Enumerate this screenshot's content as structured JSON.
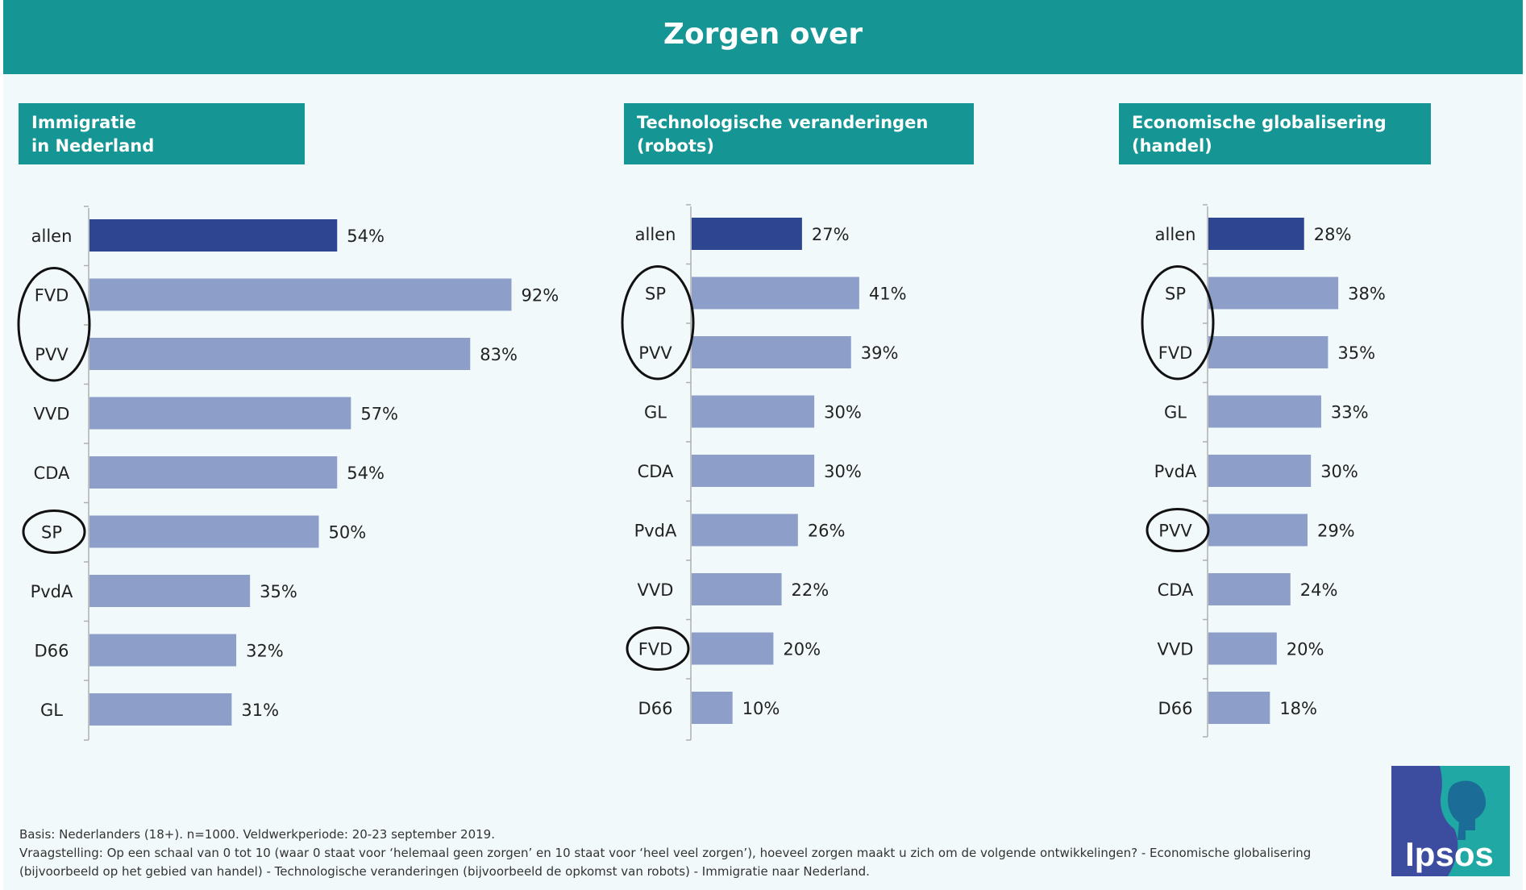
{
  "title": "Zorgen over",
  "colors": {
    "header": "#159593",
    "highlight_bar": "#2e4592",
    "bar": "#8d9ec9",
    "panel_bg": "#f2f9fa",
    "logo_bg": "#3c4da0",
    "logo_accent": "#1fa8a4"
  },
  "chart_data": [
    {
      "type": "bar",
      "orientation": "horizontal",
      "title": "Immigratie\nin Nederland",
      "categories": [
        "allen",
        "FVD",
        "PVV",
        "VVD",
        "CDA",
        "SP",
        "PvdA",
        "D66",
        "GL"
      ],
      "values": [
        54,
        92,
        83,
        57,
        54,
        50,
        35,
        32,
        31
      ],
      "labels": [
        "54%",
        "92%",
        "83%",
        "57%",
        "54%",
        "50%",
        "35%",
        "32%",
        "31%"
      ],
      "highlighted": [
        "allen"
      ],
      "circled_groups": [
        [
          "FVD",
          "PVV"
        ],
        [
          "SP"
        ]
      ],
      "unit": "%",
      "xlim": [
        0,
        100
      ],
      "grid": false
    },
    {
      "type": "bar",
      "orientation": "horizontal",
      "title": "Technologische veranderingen\n(robots)",
      "categories": [
        "allen",
        "SP",
        "PVV",
        "GL",
        "CDA",
        "PvdA",
        "VVD",
        "FVD",
        "D66"
      ],
      "values": [
        27,
        41,
        39,
        30,
        30,
        26,
        22,
        20,
        10
      ],
      "labels": [
        "27%",
        "41%",
        "39%",
        "30%",
        "30%",
        "26%",
        "22%",
        "20%",
        "10%"
      ],
      "highlighted": [
        "allen"
      ],
      "circled_groups": [
        [
          "SP",
          "PVV"
        ],
        [
          "FVD"
        ]
      ],
      "unit": "%",
      "xlim": [
        0,
        100
      ],
      "grid": false
    },
    {
      "type": "bar",
      "orientation": "horizontal",
      "title": "Economische globalisering\n (handel)",
      "categories": [
        "allen",
        "SP",
        "FVD",
        "GL",
        "PvdA",
        "PVV",
        "CDA",
        "VVD",
        "D66"
      ],
      "values": [
        28,
        38,
        35,
        33,
        30,
        29,
        24,
        20,
        18
      ],
      "labels": [
        "28%",
        "38%",
        "35%",
        "33%",
        "30%",
        "29%",
        "24%",
        "20%",
        "18%"
      ],
      "highlighted": [
        "allen"
      ],
      "circled_groups": [
        [
          "SP",
          "FVD"
        ],
        [
          "PVV"
        ]
      ],
      "unit": "%",
      "xlim": [
        0,
        100
      ],
      "grid": false
    }
  ],
  "footnote": {
    "line1": "Basis: Nederlanders (18+). n=1000. Veldwerkperiode: 20-23 september 2019.",
    "line2": "Vraagstelling: Op een schaal van 0 tot 10 (waar 0 staat voor ‘helemaal geen zorgen’ en 10 staat voor ‘heel veel zorgen’), hoeveel zorgen maakt u zich om de volgende ontwikkelingen? - Economische globalisering",
    "line3": "(bijvoorbeeld op het gebied van handel) - Technologische veranderingen (bijvoorbeeld de opkomst van robots)  - Immigratie naar Nederland."
  },
  "logo": {
    "text": "Ipsos"
  }
}
